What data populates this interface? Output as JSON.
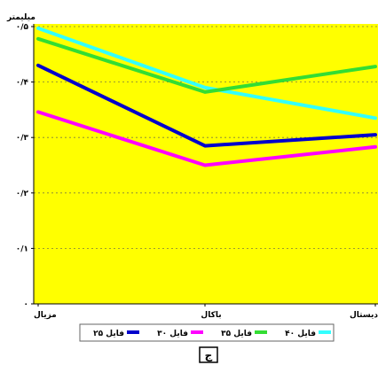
{
  "chart_data": {
    "type": "line",
    "ylabel": "میلیمتر",
    "categories": [
      "مزیال",
      "باکال",
      "دیستال"
    ],
    "ylim": [
      0,
      0.5
    ],
    "yticks": [
      0,
      0.1,
      0.2,
      0.3,
      0.4,
      0.5
    ],
    "ytick_labels": [
      "۰",
      "۰/۱",
      "۰/۲",
      "۰/۳",
      "۰/۴",
      "۰/۵"
    ],
    "grid": true,
    "legend_position": "bottom",
    "background_color": "#ffff00",
    "series": [
      {
        "name": "فایل ۲۵",
        "color": "#0000cc",
        "values": [
          0.43,
          0.285,
          0.305
        ]
      },
      {
        "name": "فایل ۳۰",
        "color": "#ff00ff",
        "values": [
          0.346,
          0.25,
          0.283
        ]
      },
      {
        "name": "فایل ۳۵",
        "color": "#33dd33",
        "values": [
          0.478,
          0.382,
          0.428
        ]
      },
      {
        "name": "فایل ۴۰",
        "color": "#33ffff",
        "values": [
          0.497,
          0.39,
          0.335
        ]
      }
    ],
    "panel_label": "ج"
  }
}
